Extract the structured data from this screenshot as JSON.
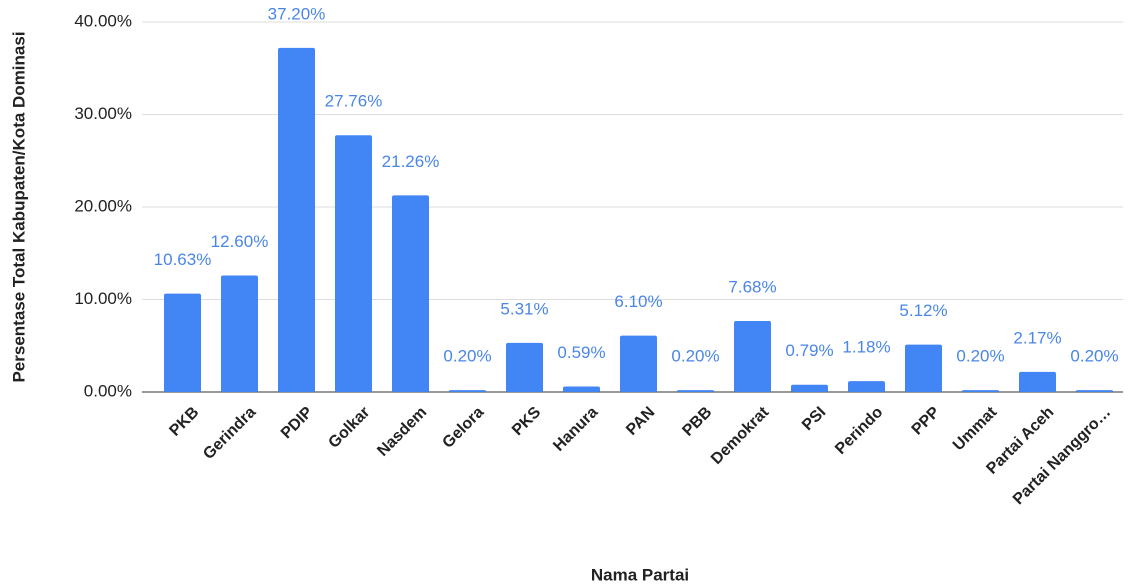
{
  "chart_data": {
    "type": "bar",
    "categories": [
      "PKB",
      "Gerindra",
      "PDIP",
      "Golkar",
      "Nasdem",
      "Gelora",
      "PKS",
      "Hanura",
      "PAN",
      "PBB",
      "Demokrat",
      "PSI",
      "Perindo",
      "PPP",
      "Ummat",
      "Partai Aceh",
      "Partai Nanggro…"
    ],
    "values": [
      10.63,
      12.6,
      37.2,
      27.76,
      21.26,
      0.2,
      5.31,
      0.59,
      6.1,
      0.2,
      7.68,
      0.79,
      1.18,
      5.12,
      0.2,
      2.17,
      0.2
    ],
    "value_labels": [
      "10.63%",
      "12.60%",
      "37.20%",
      "27.76%",
      "21.26%",
      "0.20%",
      "5.31%",
      "0.59%",
      "6.10%",
      "0.20%",
      "7.68%",
      "0.79%",
      "1.18%",
      "5.12%",
      "0.20%",
      "2.17%",
      "0.20%"
    ],
    "color": "#4285f4",
    "ylim": [
      0,
      40
    ],
    "yticks": [
      {
        "value": 0,
        "label": "0.00%"
      },
      {
        "value": 10,
        "label": "10.00%"
      },
      {
        "value": 20,
        "label": "20.00%"
      },
      {
        "value": 30,
        "label": "30.00%"
      },
      {
        "value": 40,
        "label": "40.00%"
      }
    ],
    "grid": true,
    "xlabel": "Nama Partai",
    "ylabel": "Persentase Total Kabupaten/Kota Dominasi"
  }
}
